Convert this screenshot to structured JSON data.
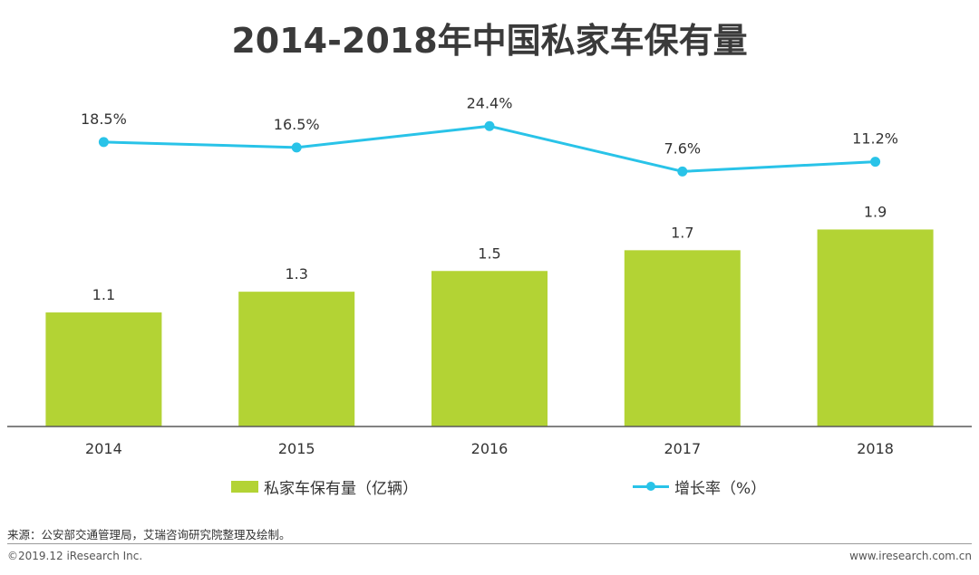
{
  "title": "2014-2018年中国私家车保有量",
  "legend": {
    "bars_label": "私家车保有量（亿辆）",
    "line_label": "增长率（%）"
  },
  "source": "来源：公安部交通管理局，艾瑞咨询研究院整理及绘制。",
  "footer": {
    "left": "©2019.12 iResearch Inc.",
    "right": "www.iresearch.com.cn"
  },
  "colors": {
    "bar": "#b3d334",
    "line": "#29c3e8",
    "axis": "#595959",
    "text": "#333333"
  },
  "chart_data": {
    "type": "bar",
    "categories": [
      "2014",
      "2015",
      "2016",
      "2017",
      "2018"
    ],
    "series": [
      {
        "name": "私家车保有量（亿辆）",
        "type": "bar",
        "values": [
          1.1,
          1.3,
          1.5,
          1.7,
          1.9
        ],
        "labels": [
          "1.1",
          "1.3",
          "1.5",
          "1.7",
          "1.9"
        ]
      },
      {
        "name": "增长率（%）",
        "type": "line",
        "values": [
          18.5,
          16.5,
          24.4,
          7.6,
          11.2
        ],
        "labels": [
          "18.5%",
          "16.5%",
          "24.4%",
          "7.6%",
          "11.2%"
        ]
      }
    ],
    "legend_position": "bottom",
    "grid": false
  }
}
